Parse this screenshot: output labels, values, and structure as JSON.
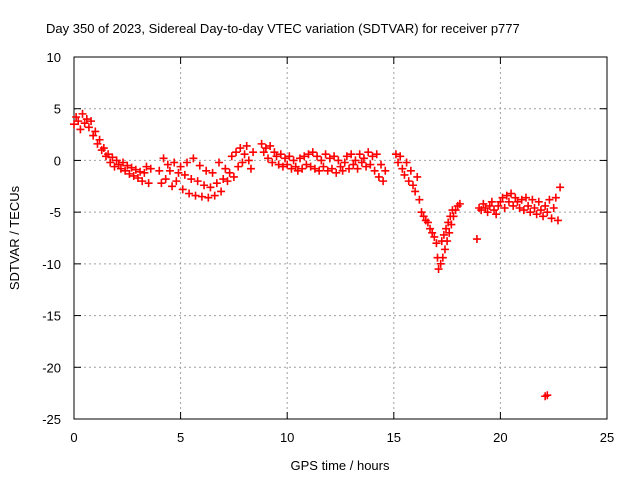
{
  "chart_data": {
    "type": "scatter",
    "title": "Day 350 of 2023, Sidereal Day-to-day VTEC variation (SDTVAR) for receiver p777",
    "xlabel": "GPS time / hours",
    "ylabel": "SDTVAR / TECUs",
    "xlim": [
      0,
      25
    ],
    "ylim": [
      -25,
      10
    ],
    "xticks": [
      0,
      5,
      10,
      15,
      20,
      25
    ],
    "yticks": [
      -25,
      -20,
      -15,
      -10,
      -5,
      0,
      5,
      10
    ],
    "xtick_labels": [
      "0",
      "5",
      "10",
      "15",
      "20",
      "25"
    ],
    "ytick_labels": [
      "-25",
      "-20",
      "-15",
      "-10",
      "-5",
      "0",
      "5",
      "10"
    ],
    "grid": true,
    "legend": "none",
    "marker": "+",
    "series": [
      {
        "name": "SDTVAR",
        "color": "#ff0000",
        "points": [
          [
            0.0,
            3.5
          ],
          [
            0.1,
            4.2
          ],
          [
            0.2,
            3.8
          ],
          [
            0.3,
            3.0
          ],
          [
            0.4,
            4.5
          ],
          [
            0.5,
            3.6
          ],
          [
            0.6,
            4.0
          ],
          [
            0.7,
            3.2
          ],
          [
            0.8,
            3.8
          ],
          [
            0.9,
            2.4
          ],
          [
            1.0,
            2.8
          ],
          [
            1.1,
            1.6
          ],
          [
            1.2,
            2.0
          ],
          [
            1.3,
            1.0
          ],
          [
            1.4,
            1.2
          ],
          [
            1.5,
            0.4
          ],
          [
            1.6,
            0.6
          ],
          [
            1.7,
            -0.2
          ],
          [
            1.8,
            0.3
          ],
          [
            1.9,
            -0.6
          ],
          [
            2.0,
            0.0
          ],
          [
            2.1,
            -0.4
          ],
          [
            2.2,
            -0.8
          ],
          [
            2.3,
            -0.2
          ],
          [
            2.4,
            -1.0
          ],
          [
            2.5,
            -0.5
          ],
          [
            2.6,
            -1.3
          ],
          [
            2.7,
            -0.7
          ],
          [
            2.8,
            -1.5
          ],
          [
            2.9,
            -0.9
          ],
          [
            3.0,
            -1.7
          ],
          [
            3.1,
            -1.1
          ],
          [
            3.2,
            -2.0
          ],
          [
            3.3,
            -1.2
          ],
          [
            3.4,
            -0.6
          ],
          [
            3.5,
            -2.2
          ],
          [
            3.6,
            -0.8
          ],
          [
            4.0,
            -1.0
          ],
          [
            4.1,
            -2.2
          ],
          [
            4.2,
            0.2
          ],
          [
            4.3,
            -1.8
          ],
          [
            4.4,
            -0.4
          ],
          [
            4.5,
            -1.0
          ],
          [
            4.6,
            -2.5
          ],
          [
            4.7,
            -0.2
          ],
          [
            4.8,
            -2.0
          ],
          [
            4.9,
            -1.2
          ],
          [
            5.0,
            -0.6
          ],
          [
            5.1,
            -2.8
          ],
          [
            5.2,
            -1.4
          ],
          [
            5.3,
            -0.2
          ],
          [
            5.4,
            -3.2
          ],
          [
            5.5,
            -1.8
          ],
          [
            5.6,
            0.2
          ],
          [
            5.7,
            -3.4
          ],
          [
            5.8,
            -2.0
          ],
          [
            5.9,
            -0.5
          ],
          [
            6.0,
            -3.5
          ],
          [
            6.1,
            -2.4
          ],
          [
            6.2,
            -1.0
          ],
          [
            6.3,
            -3.6
          ],
          [
            6.4,
            -2.6
          ],
          [
            6.5,
            -1.2
          ],
          [
            6.6,
            -3.4
          ],
          [
            6.7,
            -2.2
          ],
          [
            6.8,
            -0.2
          ],
          [
            6.9,
            -3.0
          ],
          [
            7.0,
            -1.8
          ],
          [
            7.1,
            -0.8
          ],
          [
            7.2,
            -2.0
          ],
          [
            7.3,
            -1.2
          ],
          [
            7.4,
            0.4
          ],
          [
            7.5,
            -1.6
          ],
          [
            7.6,
            0.8
          ],
          [
            7.7,
            -0.6
          ],
          [
            7.8,
            1.2
          ],
          [
            7.9,
            -0.2
          ],
          [
            8.0,
            0.6
          ],
          [
            8.1,
            1.4
          ],
          [
            8.2,
            0.0
          ],
          [
            8.3,
            -0.8
          ],
          [
            8.4,
            0.8
          ],
          [
            8.8,
            1.6
          ],
          [
            8.9,
            0.8
          ],
          [
            9.0,
            1.2
          ],
          [
            9.1,
            0.2
          ],
          [
            9.2,
            1.4
          ],
          [
            9.3,
            -0.2
          ],
          [
            9.4,
            0.8
          ],
          [
            9.5,
            0.4
          ],
          [
            9.6,
            -0.4
          ],
          [
            9.7,
            0.6
          ],
          [
            9.8,
            -0.6
          ],
          [
            9.9,
            0.2
          ],
          [
            10.0,
            -0.4
          ],
          [
            10.1,
            0.4
          ],
          [
            10.2,
            -0.8
          ],
          [
            10.3,
            0.0
          ],
          [
            10.4,
            -0.6
          ],
          [
            10.5,
            -1.0
          ],
          [
            10.6,
            0.2
          ],
          [
            10.7,
            -0.8
          ],
          [
            10.8,
            0.4
          ],
          [
            10.9,
            -0.4
          ],
          [
            11.0,
            0.6
          ],
          [
            11.1,
            -0.6
          ],
          [
            11.2,
            0.8
          ],
          [
            11.3,
            -0.8
          ],
          [
            11.4,
            0.4
          ],
          [
            11.5,
            -1.0
          ],
          [
            11.6,
            0.0
          ],
          [
            11.7,
            -0.6
          ],
          [
            11.8,
            0.6
          ],
          [
            11.9,
            -1.0
          ],
          [
            12.0,
            0.2
          ],
          [
            12.1,
            -0.8
          ],
          [
            12.2,
            0.4
          ],
          [
            12.3,
            -1.2
          ],
          [
            12.4,
            0.0
          ],
          [
            12.5,
            -0.6
          ],
          [
            12.6,
            -1.0
          ],
          [
            12.7,
            -0.2
          ],
          [
            12.8,
            0.4
          ],
          [
            12.9,
            -0.8
          ],
          [
            13.0,
            0.6
          ],
          [
            13.1,
            -0.4
          ],
          [
            13.2,
            0.0
          ],
          [
            13.3,
            -0.8
          ],
          [
            13.4,
            0.6
          ],
          [
            13.5,
            -0.2
          ],
          [
            13.6,
            0.2
          ],
          [
            13.7,
            -0.6
          ],
          [
            13.8,
            0.8
          ],
          [
            13.9,
            -0.4
          ],
          [
            14.0,
            0.4
          ],
          [
            14.1,
            -1.0
          ],
          [
            14.2,
            0.6
          ],
          [
            14.3,
            -1.6
          ],
          [
            14.4,
            -0.4
          ],
          [
            14.5,
            -2.0
          ],
          [
            14.6,
            -1.0
          ],
          [
            15.1,
            0.6
          ],
          [
            15.2,
            -0.2
          ],
          [
            15.3,
            0.4
          ],
          [
            15.4,
            -0.8
          ],
          [
            15.5,
            -1.4
          ],
          [
            15.6,
            -0.2
          ],
          [
            15.7,
            -2.0
          ],
          [
            15.8,
            -1.0
          ],
          [
            15.9,
            -2.4
          ],
          [
            16.0,
            -3.0
          ],
          [
            16.1,
            -1.6
          ],
          [
            16.2,
            -3.8
          ],
          [
            16.3,
            -5.0
          ],
          [
            16.4,
            -5.4
          ],
          [
            16.5,
            -5.8
          ],
          [
            16.6,
            -6.0
          ],
          [
            16.7,
            -6.6
          ],
          [
            16.8,
            -7.0
          ],
          [
            16.9,
            -7.4
          ],
          [
            17.0,
            -8.0
          ],
          [
            17.05,
            -9.4
          ],
          [
            17.1,
            -10.5
          ],
          [
            17.2,
            -10.0
          ],
          [
            17.3,
            -9.4
          ],
          [
            17.4,
            -8.6
          ],
          [
            17.5,
            -7.8
          ],
          [
            17.6,
            -7.0
          ],
          [
            17.7,
            -6.2
          ],
          [
            17.8,
            -5.4
          ],
          [
            17.9,
            -4.8
          ],
          [
            18.0,
            -4.4
          ],
          [
            18.1,
            -4.2
          ],
          [
            17.35,
            -7.2
          ],
          [
            17.45,
            -6.6
          ],
          [
            17.55,
            -6.0
          ],
          [
            17.65,
            -5.4
          ],
          [
            17.75,
            -4.8
          ],
          [
            17.25,
            -7.8
          ],
          [
            18.9,
            -7.6
          ],
          [
            19.0,
            -4.6
          ],
          [
            19.1,
            -4.8
          ],
          [
            19.2,
            -4.2
          ],
          [
            19.3,
            -4.6
          ],
          [
            19.4,
            -5.0
          ],
          [
            19.5,
            -4.4
          ],
          [
            19.6,
            -4.0
          ],
          [
            19.7,
            -4.8
          ],
          [
            19.8,
            -5.2
          ],
          [
            19.9,
            -4.4
          ],
          [
            20.0,
            -4.0
          ],
          [
            20.1,
            -3.6
          ],
          [
            20.2,
            -4.6
          ],
          [
            20.3,
            -3.4
          ],
          [
            20.4,
            -4.0
          ],
          [
            20.5,
            -3.2
          ],
          [
            20.6,
            -4.4
          ],
          [
            20.7,
            -3.6
          ],
          [
            20.8,
            -4.0
          ],
          [
            20.9,
            -4.6
          ],
          [
            21.0,
            -3.8
          ],
          [
            21.1,
            -4.8
          ],
          [
            21.2,
            -3.6
          ],
          [
            21.3,
            -4.4
          ],
          [
            21.4,
            -5.0
          ],
          [
            21.5,
            -3.8
          ],
          [
            21.6,
            -4.6
          ],
          [
            21.7,
            -5.2
          ],
          [
            21.8,
            -4.0
          ],
          [
            21.9,
            -4.8
          ],
          [
            22.0,
            -5.4
          ],
          [
            22.1,
            -4.4
          ],
          [
            22.2,
            -5.0
          ],
          [
            22.3,
            -3.8
          ],
          [
            22.4,
            -5.6
          ],
          [
            22.5,
            -4.6
          ],
          [
            22.6,
            -3.6
          ],
          [
            22.7,
            -5.8
          ],
          [
            22.8,
            -2.6
          ],
          [
            22.1,
            -22.8
          ],
          [
            22.2,
            -22.7
          ]
        ]
      }
    ]
  }
}
